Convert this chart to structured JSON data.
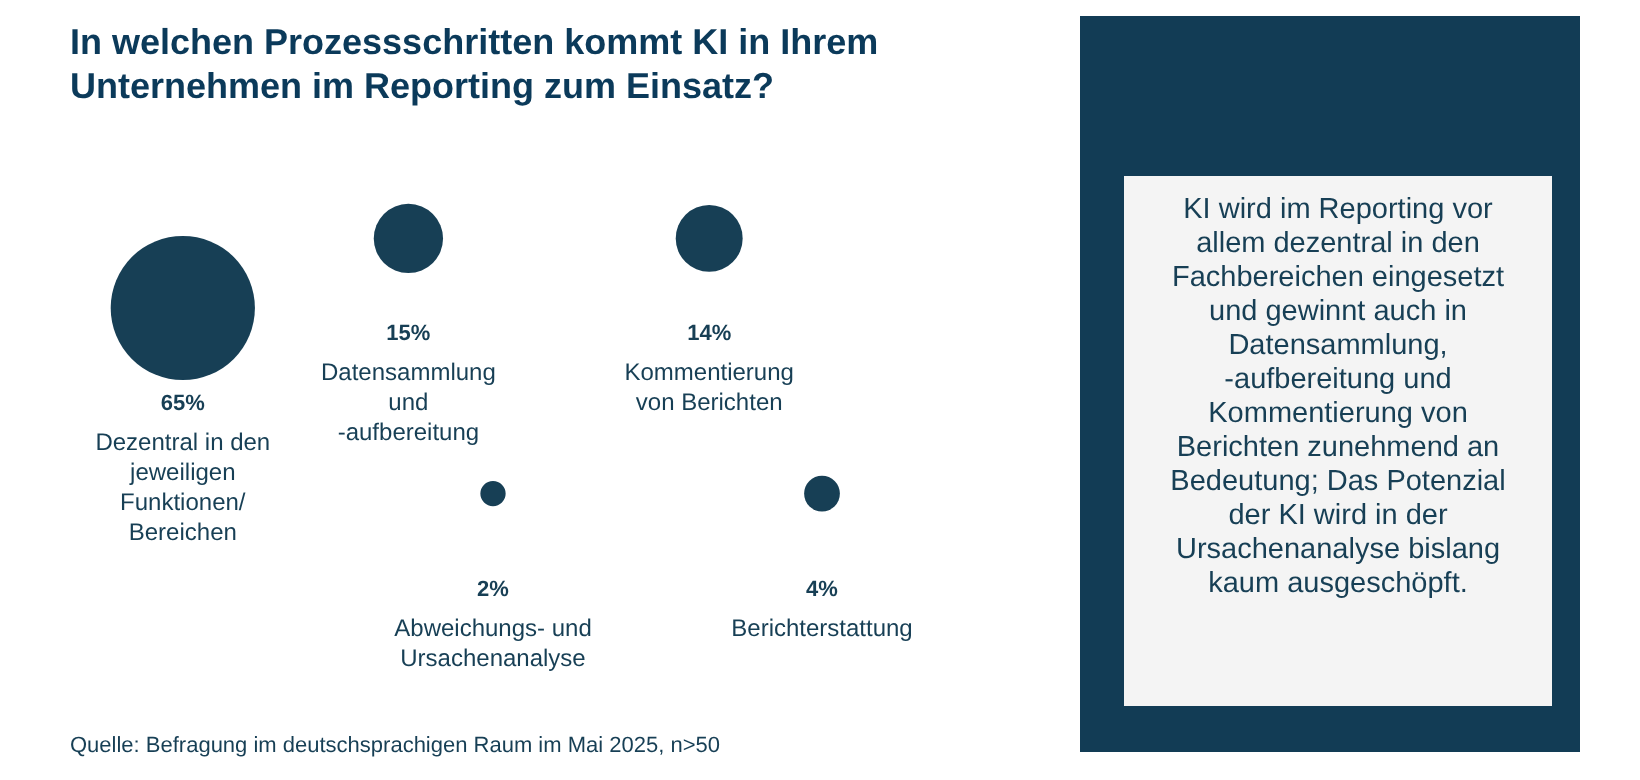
{
  "chart_data": [
    {
      "type": "other",
      "title": "In welchen Prozessschritten kommt KI in Ihrem Unternehmen im Reporting zum Einsatz?",
      "categories": [
        "Dezentral in den jeweiligen Funktionen/ Bereichen",
        "Datensammlung und -aufbereitung",
        "Kommentierung von Berichten",
        "Abweichungs- und Ursachenanalyse",
        "Berichterstattung"
      ],
      "values": [
        65,
        15,
        14,
        2,
        4
      ],
      "value_labels": [
        "65%",
        "15%",
        "14%",
        "2%",
        "4%"
      ],
      "color": "#173f55",
      "annotations": [
        "Quelle: Befragung im deutschsprachigen Raum im Mai 2025, n>50"
      ]
    },
    {
      "type": "other",
      "annotations": [
        "KI wird im Reporting vor allem dezentral in den Fachbereichen eingesetzt und gewinnt auch in Datensammlung, -aufbereitung und Kommentierung von Berichten zunehmend an Bedeutung; Das Potenzial der KI wird in der Ursachenanalyse bislang kaum ausgeschöpft."
      ]
    }
  ]
}
